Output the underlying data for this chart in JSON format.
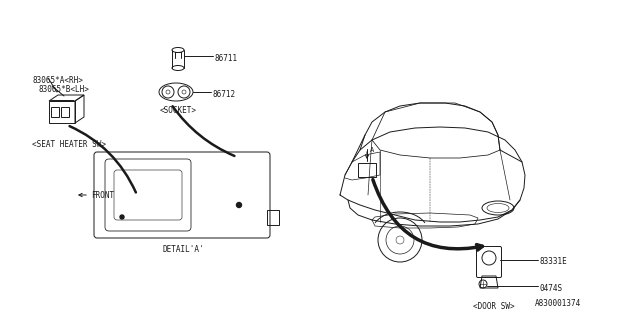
{
  "bg_color": "#ffffff",
  "line_color": "#1a1a1a",
  "text_color": "#1a1a1a",
  "part_number_ref": "A830001374",
  "label_rh": "83065*A<RH>",
  "label_lh": "83065*B<LH>",
  "label_seat_sw": "<SEAT HEATER SW>",
  "label_86711": "86711",
  "label_86712": "86712",
  "label_socket": "<SOCKET>",
  "label_detail": "DETAIL'A'",
  "label_front": "FRONT",
  "label_door_num": "83331E",
  "label_screw": "0474S",
  "label_door_sw": "<DOOR SW>"
}
